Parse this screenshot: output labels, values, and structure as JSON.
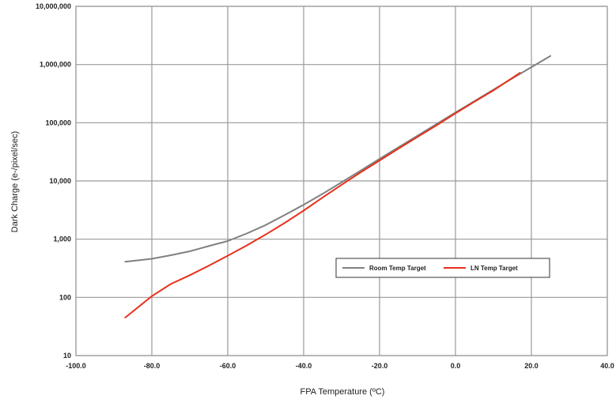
{
  "chart_data": {
    "type": "line",
    "title": "",
    "xlabel": "FPA Temperature (ºC)",
    "ylabel": "Dark Charge (e-/pixel/sec)",
    "xlim": [
      -100,
      40
    ],
    "ylim": [
      10,
      10000000
    ],
    "yscale": "log",
    "grid": true,
    "legend_position": "center-right",
    "x_tick_labels": [
      "-100.0",
      "-80.0",
      "-60.0",
      "-40.0",
      "-20.0",
      "0.0",
      "20.0",
      "40.0"
    ],
    "y_tick_labels": [
      "10",
      "100",
      "1,000",
      "10,000",
      "100,000",
      "1,000,000",
      "10,000,000"
    ],
    "series": [
      {
        "name": "Room Temp Target",
        "color": "#808080",
        "points": [
          [
            -87,
            410
          ],
          [
            -80,
            460
          ],
          [
            -75,
            530
          ],
          [
            -70,
            620
          ],
          [
            -65,
            760
          ],
          [
            -60,
            930
          ],
          [
            -55,
            1250
          ],
          [
            -50,
            1750
          ],
          [
            -45,
            2600
          ],
          [
            -40,
            3900
          ],
          [
            -35,
            6000
          ],
          [
            -30,
            9500
          ],
          [
            -25,
            15000
          ],
          [
            -20,
            24000
          ],
          [
            -15,
            38000
          ],
          [
            -10,
            60000
          ],
          [
            -5,
            95000
          ],
          [
            0,
            150000
          ],
          [
            5,
            235000
          ],
          [
            10,
            370000
          ],
          [
            15,
            580000
          ],
          [
            20,
            900000
          ],
          [
            25,
            1400000
          ]
        ]
      },
      {
        "name": "LN Temp Target",
        "color": "#e8311c",
        "points": [
          [
            -87,
            45
          ],
          [
            -80,
            105
          ],
          [
            -75,
            170
          ],
          [
            -70,
            240
          ],
          [
            -65,
            350
          ],
          [
            -60,
            520
          ],
          [
            -55,
            780
          ],
          [
            -50,
            1200
          ],
          [
            -45,
            1900
          ],
          [
            -40,
            3100
          ],
          [
            -35,
            5200
          ],
          [
            -30,
            8600
          ],
          [
            -25,
            14000
          ],
          [
            -20,
            22500
          ],
          [
            -15,
            36000
          ],
          [
            -10,
            57000
          ],
          [
            -5,
            90000
          ],
          [
            0,
            145000
          ],
          [
            5,
            230000
          ],
          [
            10,
            360000
          ],
          [
            17,
            720000
          ]
        ]
      }
    ]
  }
}
